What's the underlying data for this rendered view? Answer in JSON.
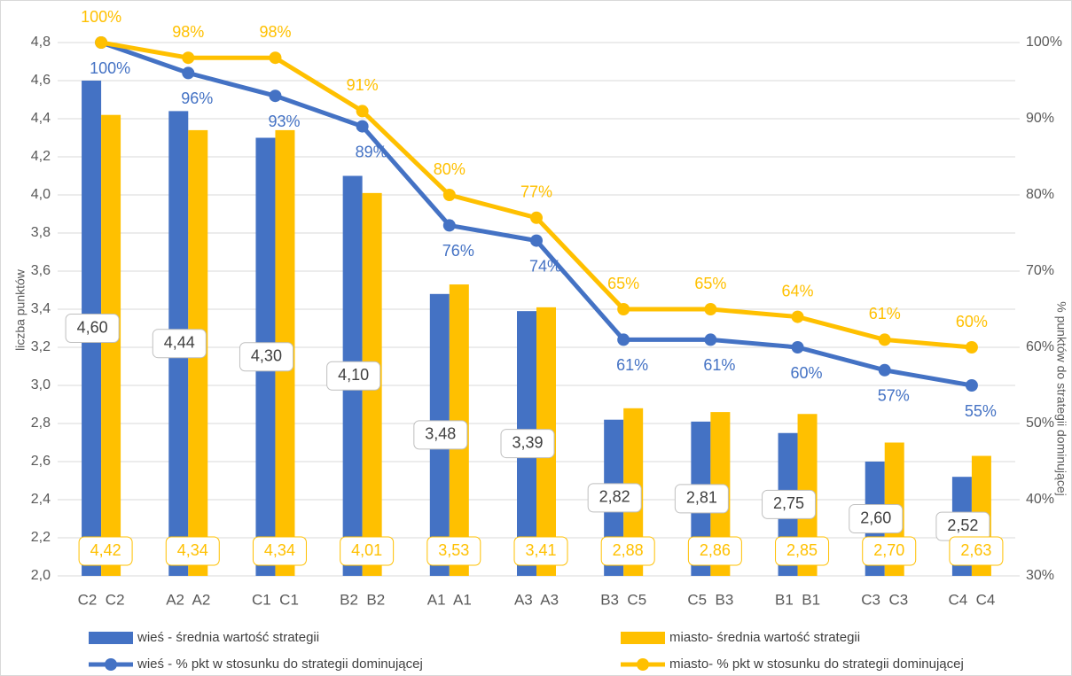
{
  "chart_data": {
    "type": "bar",
    "categories": [
      "C2  C2",
      "A2  A2",
      "C1  C1",
      "B2  B2",
      "A1  A1",
      "A3  A3",
      "B3  C5",
      "C5  B3",
      "B1  B1",
      "C3  C3",
      "C4  C4"
    ],
    "series": [
      {
        "name": "wieś - średnia wartość strategii",
        "type": "bar",
        "color": "#4472c4",
        "values": [
          4.6,
          4.44,
          4.3,
          4.1,
          3.48,
          3.39,
          2.82,
          2.81,
          2.75,
          2.6,
          2.52
        ],
        "value_labels": [
          "4,60",
          "4,44",
          "4,30",
          "4,10",
          "3,48",
          "3,39",
          "2,82",
          "2,81",
          "2,75",
          "2,60",
          "2,52"
        ]
      },
      {
        "name": "miasto- średnia wartość strategii",
        "type": "bar",
        "color": "#ffc000",
        "values": [
          4.42,
          4.34,
          4.34,
          4.01,
          3.53,
          3.41,
          2.88,
          2.86,
          2.85,
          2.7,
          2.63
        ],
        "value_labels": [
          "4,42",
          "4,34",
          "4,34",
          "4,01",
          "3,53",
          "3,41",
          "2,88",
          "2,86",
          "2,85",
          "2,70",
          "2,63"
        ]
      },
      {
        "name": "wieś - % pkt w stosunku do strategii dominującej",
        "type": "line",
        "axis": "y2",
        "color": "#4472c4",
        "values": [
          100,
          96,
          93,
          89,
          76,
          74,
          61,
          61,
          60,
          57,
          55
        ],
        "value_labels": [
          "100%",
          "96%",
          "93%",
          "89%",
          "76%",
          "74%",
          "61%",
          "61%",
          "60%",
          "57%",
          "55%"
        ]
      },
      {
        "name": "miasto- % pkt w stosunku do strategii dominującej",
        "type": "line",
        "axis": "y2",
        "color": "#ffc000",
        "values": [
          100,
          98,
          98,
          91,
          80,
          77,
          65,
          65,
          64,
          61,
          60
        ],
        "value_labels": [
          "100%",
          "98%",
          "98%",
          "91%",
          "80%",
          "77%",
          "65%",
          "65%",
          "64%",
          "61%",
          "60%"
        ]
      }
    ],
    "y_label": "liczba punktów",
    "y2_label": "% punktów do strategii dominującej",
    "ylim": [
      2.0,
      4.8
    ],
    "yticks": [
      {
        "value": 2.0,
        "label": "2,0"
      },
      {
        "value": 2.2,
        "label": "2,2"
      },
      {
        "value": 2.4,
        "label": "2,4"
      },
      {
        "value": 2.6,
        "label": "2,6"
      },
      {
        "value": 2.8,
        "label": "2,8"
      },
      {
        "value": 3.0,
        "label": "3,0"
      },
      {
        "value": 3.2,
        "label": "3,2"
      },
      {
        "value": 3.4,
        "label": "3,4"
      },
      {
        "value": 3.6,
        "label": "3,6"
      },
      {
        "value": 3.8,
        "label": "3,8"
      },
      {
        "value": 4.0,
        "label": "4,0"
      },
      {
        "value": 4.2,
        "label": "4,2"
      },
      {
        "value": 4.4,
        "label": "4,4"
      },
      {
        "value": 4.6,
        "label": "4,6"
      },
      {
        "value": 4.8,
        "label": "4,8"
      }
    ],
    "y2lim": [
      30,
      100
    ],
    "y2ticks": [
      {
        "value": 30,
        "label": "30%"
      },
      {
        "value": 40,
        "label": "40%"
      },
      {
        "value": 50,
        "label": "50%"
      },
      {
        "value": 60,
        "label": "60%"
      },
      {
        "value": 70,
        "label": "70%"
      },
      {
        "value": 80,
        "label": "80%"
      },
      {
        "value": 90,
        "label": "90%"
      },
      {
        "value": 100,
        "label": "100%"
      }
    ],
    "grid": true
  }
}
